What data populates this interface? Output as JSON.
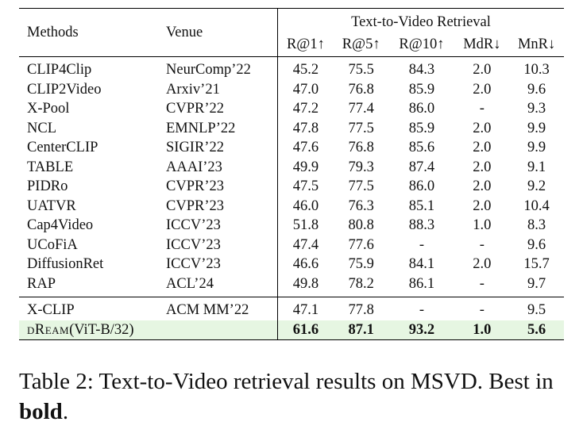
{
  "table": {
    "header": {
      "methods": "Methods",
      "venue": "Venue",
      "group": "Text-to-Video Retrieval",
      "metrics": [
        "R@1↑",
        "R@5↑",
        "R@10↑",
        "MdR↓",
        "MnR↓"
      ]
    },
    "rows": [
      {
        "method": "CLIP4Clip",
        "venue": "NeurComp’22",
        "r1": "45.2",
        "r5": "75.5",
        "r10": "84.3",
        "mdr": "2.0",
        "mnr": "10.3"
      },
      {
        "method": "CLIP2Video",
        "venue": "Arxiv’21",
        "r1": "47.0",
        "r5": "76.8",
        "r10": "85.9",
        "mdr": "2.0",
        "mnr": "9.6"
      },
      {
        "method": "X-Pool",
        "venue": "CVPR’22",
        "r1": "47.2",
        "r5": "77.4",
        "r10": "86.0",
        "mdr": "-",
        "mnr": "9.3"
      },
      {
        "method": "NCL",
        "venue": "EMNLP’22",
        "r1": "47.8",
        "r5": "77.5",
        "r10": "85.9",
        "mdr": "2.0",
        "mnr": "9.9"
      },
      {
        "method": "CenterCLIP",
        "venue": "SIGIR’22",
        "r1": "47.6",
        "r5": "76.8",
        "r10": "85.6",
        "mdr": "2.0",
        "mnr": "9.9"
      },
      {
        "method": "TABLE",
        "venue": "AAAI’23",
        "r1": "49.9",
        "r5": "79.3",
        "r10": "87.4",
        "mdr": "2.0",
        "mnr": "9.1"
      },
      {
        "method": "PIDRo",
        "venue": "CVPR’23",
        "r1": "47.5",
        "r5": "77.5",
        "r10": "86.0",
        "mdr": "2.0",
        "mnr": "9.2"
      },
      {
        "method": "UATVR",
        "venue": "CVPR’23",
        "r1": "46.0",
        "r5": "76.3",
        "r10": "85.1",
        "mdr": "2.0",
        "mnr": "10.4"
      },
      {
        "method": "Cap4Video",
        "venue": "ICCV’23",
        "r1": "51.8",
        "r5": "80.8",
        "r10": "88.3",
        "mdr": "1.0",
        "mnr": "8.3"
      },
      {
        "method": "UCoFiA",
        "venue": "ICCV’23",
        "r1": "47.4",
        "r5": "77.6",
        "r10": "-",
        "mdr": "-",
        "mnr": "9.6"
      },
      {
        "method": "DiffusionRet",
        "venue": "ICCV’23",
        "r1": "46.6",
        "r5": "75.9",
        "r10": "84.1",
        "mdr": "2.0",
        "mnr": "15.7"
      },
      {
        "method": "RAP",
        "venue": "ACL’24",
        "r1": "49.8",
        "r5": "78.2",
        "r10": "86.1",
        "mdr": "-",
        "mnr": "9.7"
      }
    ],
    "extra_rows": [
      {
        "method": "X-CLIP",
        "venue": "ACM MM’22",
        "r1": "47.1",
        "r5": "77.8",
        "r10": "-",
        "mdr": "-",
        "mnr": "9.5"
      }
    ],
    "ours": {
      "method_name": "dReam",
      "method_suffix": "(ViT-B/32)",
      "venue": "",
      "r1": "61.6",
      "r5": "87.1",
      "r10": "93.2",
      "mdr": "1.0",
      "mnr": "5.6",
      "highlight_color": "#e6f6e2"
    }
  },
  "caption": {
    "prefix": "Table 2: Text-to-Video retrieval results on MSVD. Best in ",
    "bold_word": "bold",
    "suffix": "."
  }
}
